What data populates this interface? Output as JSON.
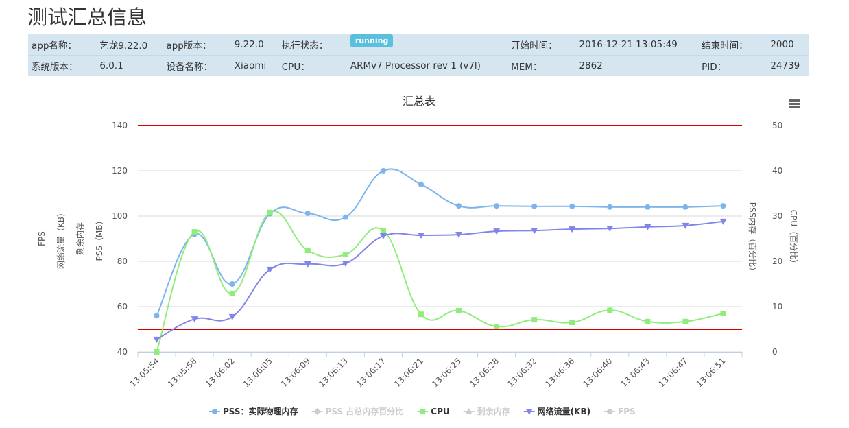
{
  "title": "测试汇总信息",
  "info": {
    "rows": [
      [
        "app名称：",
        "艺龙9.22.0",
        "app版本：",
        "9.22.0",
        "执行状态：",
        "running",
        "开始时间：",
        "2016-12-21 13:05:49",
        "结束时间：",
        "2000"
      ],
      [
        "系统版本：",
        "6.0.1",
        "设备名称：",
        "Xiaomi",
        "CPU：",
        "ARMv7 Processor rev 1 (v7l)",
        "MEM：",
        "2862",
        "PID：",
        "24739"
      ]
    ]
  },
  "chart_data": {
    "type": "line",
    "title": "汇总表",
    "y_axis_titles": [
      "FPS",
      "网络流量（KB）",
      "剩余内存",
      "PSS（MB）"
    ],
    "y2_axis_titles": [
      "PSS内存（百分比）",
      "CPU（百分比）"
    ],
    "categories": [
      "13:05:54",
      "13:05:58",
      "13:06:02",
      "13:06:05",
      "13:06:09",
      "13:06:13",
      "13:06:17",
      "13:06:21",
      "13:06:25",
      "13:06:28",
      "13:06:32",
      "13:06:36",
      "13:06:40",
      "13:06:43",
      "13:06:47",
      "13:06:51"
    ],
    "ylim": [
      40,
      140
    ],
    "yticks": [
      40,
      60,
      80,
      100,
      120,
      140
    ],
    "y2lim": [
      0,
      50
    ],
    "y2ticks": [
      0,
      10,
      20,
      30,
      40,
      50
    ],
    "grid": true,
    "smooth": true,
    "plot_lines": [
      {
        "value": 140,
        "color": "#e00000"
      },
      {
        "value": 50,
        "color": "#e00000"
      }
    ],
    "legend": "bottom",
    "series": [
      {
        "name": "PSS：实际物理内存",
        "color": "#7cb5ec",
        "marker": "circle",
        "visible": true,
        "values": [
          56,
          92,
          70,
          101,
          101.2,
          99.5,
          120,
          114,
          104.5,
          104.5,
          104.3,
          104.3,
          104,
          104,
          104,
          104.5
        ]
      },
      {
        "name": "PSS 占总内存百分比",
        "color": "#cccccc",
        "marker": "diamond",
        "visible": false,
        "axis": "y2"
      },
      {
        "name": "CPU",
        "color": "#90ed7d",
        "marker": "square",
        "visible": true,
        "axis": "y2",
        "values": [
          0,
          26.5,
          12.9,
          30.8,
          22.4,
          21.5,
          26.8,
          8.3,
          9.1,
          5.6,
          7.1,
          6.5,
          9.2,
          6.7,
          6.7,
          8.5
        ]
      },
      {
        "name": "剩余内存",
        "color": "#cccccc",
        "marker": "triangle",
        "visible": false
      },
      {
        "name": "网络流量(KB)",
        "color": "#8085e9",
        "marker": "triangle-down",
        "visible": true,
        "values": [
          45.5,
          54.5,
          55.5,
          76.4,
          78.8,
          79.1,
          91.2,
          91.5,
          91.8,
          93.3,
          93.6,
          94.2,
          94.5,
          95.2,
          95.8,
          97.6
        ]
      },
      {
        "name": "FPS",
        "color": "#cccccc",
        "marker": "circle",
        "visible": false
      }
    ]
  }
}
